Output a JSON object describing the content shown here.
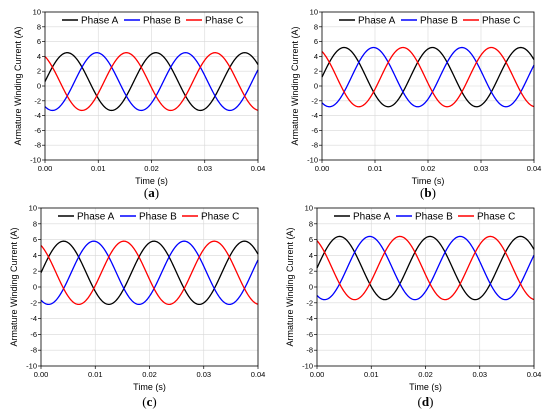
{
  "colors": {
    "Phase A": "#000000",
    "Phase B": "#0000ff",
    "Phase C": "#ff0000",
    "grid": "#d8d8d8"
  },
  "chart_data": [
    {
      "panel_label": "a",
      "type": "line",
      "xlabel": "Time (s)",
      "ylabel": "Armature Winding Current (A)",
      "xlim": [
        0.0,
        0.04
      ],
      "ylim": [
        -10,
        10
      ],
      "xticks": [
        "0.00",
        "0.01",
        "0.02",
        "0.03",
        "0.04"
      ],
      "yticks": [
        "10",
        "8",
        "6",
        "4",
        "2",
        "0",
        "-2",
        "-4",
        "-6",
        "-8",
        "-10"
      ],
      "grid": true,
      "legend_position": "top",
      "series": [
        {
          "name": "Phase A",
          "offset": 0.6,
          "amplitude": 3.9,
          "frequency_hz": 60,
          "phase_deg": 0
        },
        {
          "name": "Phase B",
          "offset": 0.6,
          "amplitude": 3.9,
          "frequency_hz": 60,
          "phase_deg": -120
        },
        {
          "name": "Phase C",
          "offset": 0.6,
          "amplitude": 3.9,
          "frequency_hz": 60,
          "phase_deg": 120
        }
      ]
    },
    {
      "panel_label": "b",
      "type": "line",
      "xlabel": "Time (s)",
      "ylabel": "Armature Winding Current (A)",
      "xlim": [
        0.0,
        0.04
      ],
      "ylim": [
        -10,
        10
      ],
      "xticks": [
        "0.00",
        "0.01",
        "0.02",
        "0.03",
        "0.04"
      ],
      "yticks": [
        "10",
        "8",
        "6",
        "4",
        "2",
        "0",
        "-2",
        "-4",
        "-6",
        "-8",
        "-10"
      ],
      "grid": true,
      "legend_position": "top",
      "series": [
        {
          "name": "Phase A",
          "offset": 1.2,
          "amplitude": 4.0,
          "frequency_hz": 60,
          "phase_deg": 0
        },
        {
          "name": "Phase B",
          "offset": 1.2,
          "amplitude": 4.0,
          "frequency_hz": 60,
          "phase_deg": -120
        },
        {
          "name": "Phase C",
          "offset": 1.2,
          "amplitude": 4.0,
          "frequency_hz": 60,
          "phase_deg": 120
        }
      ]
    },
    {
      "panel_label": "c",
      "type": "line",
      "xlabel": "Time (s)",
      "ylabel": "Armature Winding Current (A)",
      "xlim": [
        0.0,
        0.04
      ],
      "ylim": [
        -10,
        10
      ],
      "xticks": [
        "0.00",
        "0.01",
        "0.02",
        "0.03",
        "0.04"
      ],
      "yticks": [
        "10",
        "8",
        "6",
        "4",
        "2",
        "0",
        "-2",
        "-4",
        "-6",
        "-8",
        "-10"
      ],
      "grid": true,
      "legend_position": "top",
      "series": [
        {
          "name": "Phase A",
          "offset": 1.8,
          "amplitude": 4.0,
          "frequency_hz": 60,
          "phase_deg": 0
        },
        {
          "name": "Phase B",
          "offset": 1.8,
          "amplitude": 4.0,
          "frequency_hz": 60,
          "phase_deg": -120
        },
        {
          "name": "Phase C",
          "offset": 1.8,
          "amplitude": 4.0,
          "frequency_hz": 60,
          "phase_deg": 120
        }
      ]
    },
    {
      "panel_label": "d",
      "type": "line",
      "xlabel": "Time (s)",
      "ylabel": "Armature Winding Current (A)",
      "xlim": [
        0.0,
        0.04
      ],
      "ylim": [
        -10,
        10
      ],
      "xticks": [
        "0.00",
        "0.01",
        "0.02",
        "0.03",
        "0.04"
      ],
      "yticks": [
        "10",
        "8",
        "6",
        "4",
        "2",
        "0",
        "-2",
        "-4",
        "-6",
        "-8",
        "-10"
      ],
      "grid": true,
      "legend_position": "top",
      "series": [
        {
          "name": "Phase A",
          "offset": 2.4,
          "amplitude": 4.0,
          "frequency_hz": 60,
          "phase_deg": 0
        },
        {
          "name": "Phase B",
          "offset": 2.4,
          "amplitude": 4.0,
          "frequency_hz": 60,
          "phase_deg": -120
        },
        {
          "name": "Phase C",
          "offset": 2.4,
          "amplitude": 4.0,
          "frequency_hz": 60,
          "phase_deg": 120
        }
      ]
    }
  ]
}
